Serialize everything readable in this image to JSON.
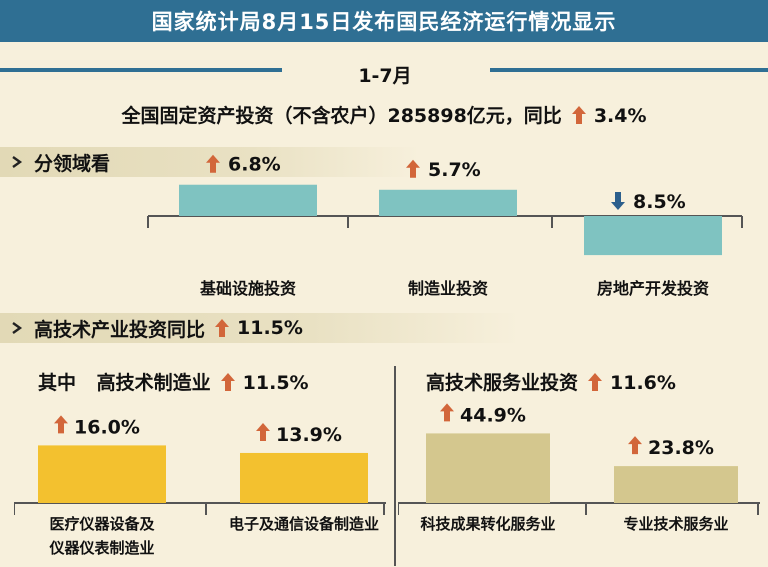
{
  "title": "国家统计局8月15日发布国民经济运行情况显示",
  "period": "1-7月",
  "headline": {
    "text": "全国固定资产投资（不含农户）285898亿元，同比",
    "change": "3.4%",
    "direction": "up"
  },
  "sections": {
    "by_field": "分领域看",
    "hightech": {
      "label": "高技术产业投资同比",
      "change": "11.5%",
      "direction": "up"
    }
  },
  "manufacturing": {
    "prefix": "其中",
    "label": "高技术制造业",
    "change": "11.5%",
    "direction": "up"
  },
  "services": {
    "label": "高技术服务业投资",
    "change": "11.6%",
    "direction": "up"
  },
  "colors": {
    "title_bg": "#2f6f93",
    "teal_bar": "#7fc3c1",
    "yellow_bar": "#f3c12f",
    "khaki_bar": "#d4c78e",
    "up_arrow": "#d2663a",
    "down_arrow": "#2c5f8c",
    "background": "#f7f0dc"
  },
  "chart_data": [
    {
      "type": "bar",
      "categories": [
        "基础设施投资",
        "制造业投资",
        "房地产开发投资"
      ],
      "values": [
        6.8,
        5.7,
        -8.5
      ],
      "labels": [
        "6.8%",
        "5.7%",
        "8.5%"
      ],
      "directions": [
        "up",
        "up",
        "down"
      ]
    },
    {
      "type": "bar",
      "categories": [
        "医疗仪器设备及仪器仪表制造业",
        "电子及通信设备制造业"
      ],
      "category_lines": [
        [
          "医疗仪器设备及",
          "仪器仪表制造业"
        ],
        [
          "电子及通信设备制造业"
        ]
      ],
      "values": [
        16.0,
        13.9
      ],
      "labels": [
        "16.0%",
        "13.9%"
      ],
      "directions": [
        "up",
        "up"
      ]
    },
    {
      "type": "bar",
      "categories": [
        "科技成果转化服务业",
        "专业技术服务业"
      ],
      "values": [
        44.9,
        23.8
      ],
      "labels": [
        "44.9%",
        "23.8%"
      ],
      "directions": [
        "up",
        "up"
      ]
    }
  ]
}
